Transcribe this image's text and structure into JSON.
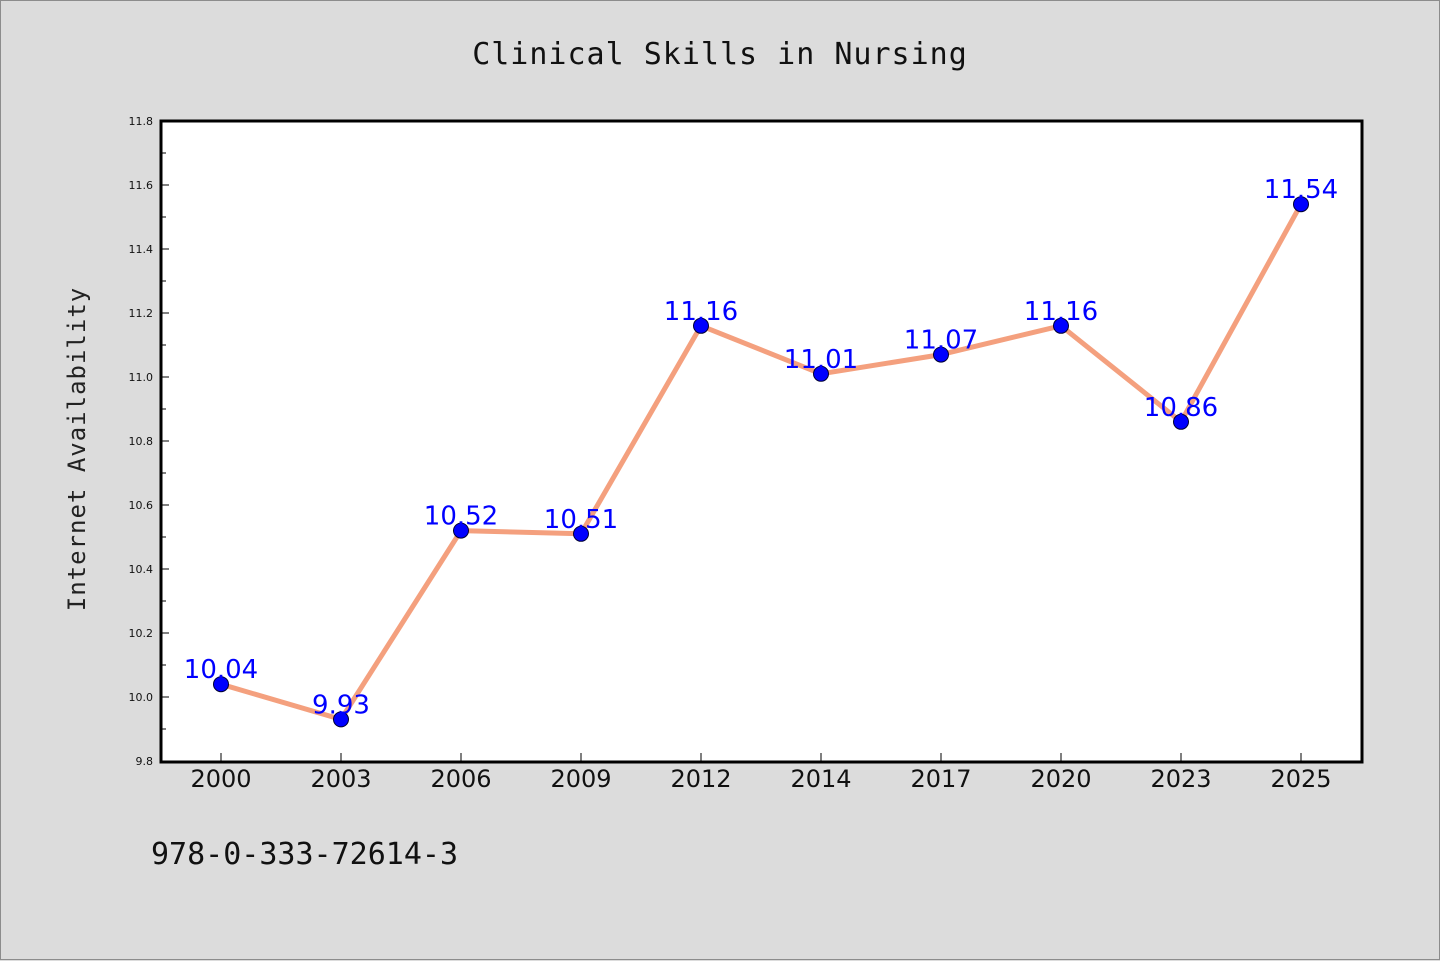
{
  "footer": {
    "isbn": "978-0-333-72614-3"
  },
  "chart_data": {
    "type": "line",
    "title": "Clinical Skills in Nursing",
    "xlabel": "",
    "ylabel": "Internet Availability",
    "categories": [
      "2000",
      "2003",
      "2006",
      "2009",
      "2012",
      "2014",
      "2017",
      "2020",
      "2023",
      "2025"
    ],
    "series": [
      {
        "values": [
          10.04,
          9.93,
          10.52,
          10.51,
          11.16,
          11.01,
          11.07,
          11.16,
          10.86,
          11.54
        ],
        "labels": [
          "10.04",
          "9.93",
          "10.52",
          "10.51",
          "11.16",
          "11.01",
          "11.07",
          "11.16",
          "10.86",
          "11.54"
        ]
      }
    ],
    "ylim": [
      9.8,
      11.8
    ],
    "yticks": [
      "9.8",
      "10.0",
      "10.2",
      "10.4",
      "10.6",
      "10.8",
      "11.0",
      "11.2",
      "11.4",
      "11.6",
      "11.8"
    ],
    "grid": false,
    "legend": "none",
    "colors": {
      "line": "#f4a07e",
      "marker": "#0000ff",
      "label": "#0000ff"
    }
  }
}
